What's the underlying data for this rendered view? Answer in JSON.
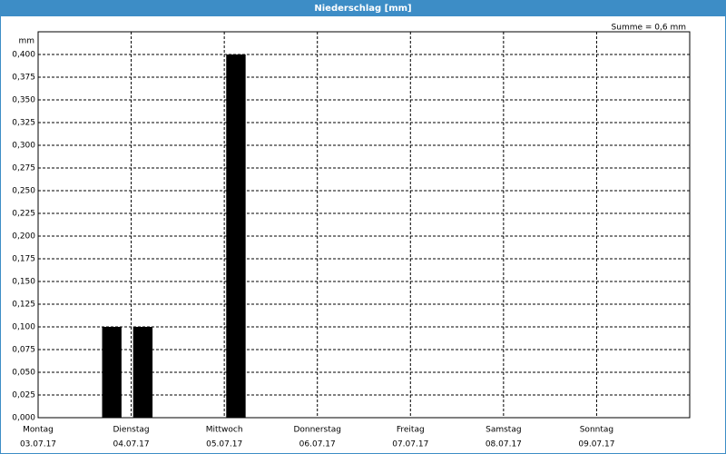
{
  "window_title": "Niederschlag [mm]",
  "chart_data": {
    "type": "bar",
    "sum_label": "Summe = 0,6 mm",
    "y_label": "mm",
    "x": [
      19,
      27,
      51
    ],
    "values": [
      0.1,
      0.1,
      0.4
    ],
    "bar_width": 5,
    "color": "#000000",
    "xlim": [
      0,
      168
    ],
    "xticks": [
      {
        "value": 0,
        "label": "Montag",
        "date": "03.07.17"
      },
      {
        "value": 24,
        "label": "Dienstag",
        "date": "04.07.17"
      },
      {
        "value": 48,
        "label": "Mittwoch",
        "date": "05.07.17"
      },
      {
        "value": 72,
        "label": "Donnerstag",
        "date": "06.07.17"
      },
      {
        "value": 96,
        "label": "Freitag",
        "date": "07.07.17"
      },
      {
        "value": 120,
        "label": "Samstag",
        "date": "08.07.17"
      },
      {
        "value": 144,
        "label": "Sonntag",
        "date": "09.07.17"
      }
    ],
    "ylim": [
      0,
      0.425
    ],
    "yticks": [
      {
        "value": 0,
        "label": "0,000"
      },
      {
        "value": 0.025,
        "label": "0,025"
      },
      {
        "value": 0.05,
        "label": "0,050"
      },
      {
        "value": 0.075,
        "label": "0,075"
      },
      {
        "value": 0.1,
        "label": "0,100"
      },
      {
        "value": 0.125,
        "label": "0,125"
      },
      {
        "value": 0.15,
        "label": "0,150"
      },
      {
        "value": 0.175,
        "label": "0,175"
      },
      {
        "value": 0.2,
        "label": "0,200"
      },
      {
        "value": 0.225,
        "label": "0,225"
      },
      {
        "value": 0.25,
        "label": "0,250"
      },
      {
        "value": 0.275,
        "label": "0,275"
      },
      {
        "value": 0.3,
        "label": "0,300"
      },
      {
        "value": 0.325,
        "label": "0,325"
      },
      {
        "value": 0.35,
        "label": "0,350"
      },
      {
        "value": 0.375,
        "label": "0,375"
      },
      {
        "value": 0.4,
        "label": "0,400"
      }
    ],
    "grid": true
  }
}
